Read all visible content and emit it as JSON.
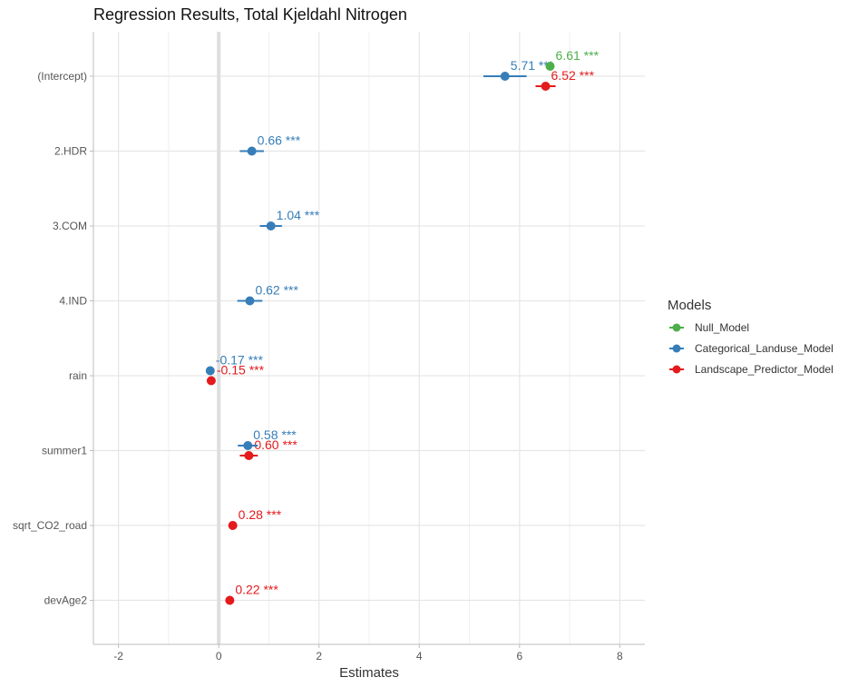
{
  "chart_data": {
    "type": "scatter",
    "title": "Regression Results, Total Kjeldahl Nitrogen",
    "xlabel": "Estimates",
    "ylabel": "",
    "xlim": [
      -2.5,
      8.5
    ],
    "xticks": [
      -2,
      0,
      2,
      4,
      6,
      8
    ],
    "categories": [
      "(Intercept)",
      "2.HDR",
      "3.COM",
      "4.IND",
      "rain",
      "summer1",
      "sqrt_CO2_road",
      "devAge2"
    ],
    "grid": true,
    "legend": {
      "title": "Models",
      "placement": "right"
    },
    "series": [
      {
        "name": "Null_Model",
        "color": "#4daf4a",
        "points": [
          {
            "term": "(Intercept)",
            "estimate": 6.61,
            "ci_low": 6.54,
            "ci_high": 6.68,
            "label": "6.61 ***"
          }
        ]
      },
      {
        "name": "Categorical_Landuse_Model",
        "color": "#377eb8",
        "points": [
          {
            "term": "(Intercept)",
            "estimate": 5.71,
            "ci_low": 5.28,
            "ci_high": 6.14,
            "label": "5.71 ***"
          },
          {
            "term": "2.HDR",
            "estimate": 0.66,
            "ci_low": 0.42,
            "ci_high": 0.9,
            "label": "0.66 ***"
          },
          {
            "term": "3.COM",
            "estimate": 1.04,
            "ci_low": 0.82,
            "ci_high": 1.26,
            "label": "1.04 ***"
          },
          {
            "term": "4.IND",
            "estimate": 0.62,
            "ci_low": 0.37,
            "ci_high": 0.87,
            "label": "0.62 ***"
          },
          {
            "term": "rain",
            "estimate": -0.17,
            "ci_low": -0.22,
            "ci_high": -0.12,
            "label": "-0.17 ***"
          },
          {
            "term": "summer1",
            "estimate": 0.58,
            "ci_low": 0.38,
            "ci_high": 0.78,
            "label": "0.58 ***"
          }
        ]
      },
      {
        "name": "Landscape_Predictor_Model",
        "color": "#e41a1c",
        "points": [
          {
            "term": "(Intercept)",
            "estimate": 6.52,
            "ci_low": 6.32,
            "ci_high": 6.72,
            "label": "6.52 ***"
          },
          {
            "term": "rain",
            "estimate": -0.15,
            "ci_low": -0.2,
            "ci_high": -0.1,
            "label": "-0.15 ***"
          },
          {
            "term": "summer1",
            "estimate": 0.6,
            "ci_low": 0.42,
            "ci_high": 0.78,
            "label": "0.60 ***"
          },
          {
            "term": "sqrt_CO2_road",
            "estimate": 0.28,
            "ci_low": 0.23,
            "ci_high": 0.33,
            "label": "0.28 ***"
          },
          {
            "term": "devAge2",
            "estimate": 0.22,
            "ci_low": 0.17,
            "ci_high": 0.27,
            "label": "0.22 ***"
          }
        ]
      }
    ]
  }
}
